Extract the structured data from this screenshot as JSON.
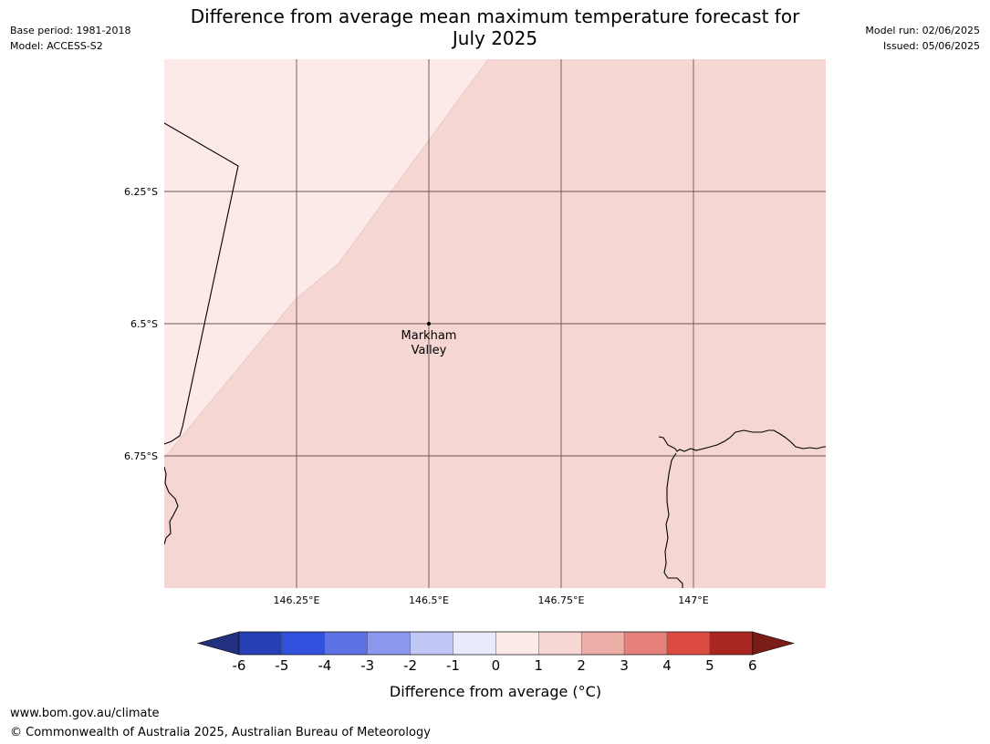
{
  "header": {
    "title_line1": "Difference from average mean maximum temperature forecast for",
    "title_line2": "July 2025",
    "base_period": "Base period: 1981-2018",
    "model": "Model: ACCESS-S2",
    "model_run": "Model run: 02/06/2025",
    "issued": "Issued: 05/06/2025"
  },
  "map": {
    "lat_labels": [
      "6.25°S",
      "6.5°S",
      "6.75°S"
    ],
    "lon_labels": [
      "146.25°E",
      "146.5°E",
      "146.75°E",
      "147°E"
    ],
    "place": {
      "name_line1": "Markham",
      "name_line2": "Valley"
    },
    "fill_colors": {
      "zero_to_one": "#fbeae8",
      "one_to_two": "#f5d6d3"
    }
  },
  "colorbar": {
    "ticks": [
      "-6",
      "-5",
      "-4",
      "-3",
      "-2",
      "-1",
      "0",
      "1",
      "2",
      "3",
      "4",
      "5",
      "6"
    ],
    "colors": [
      "#22307f",
      "#263fb5",
      "#3150de",
      "#5c71e4",
      "#8997ec",
      "#c0c7f4",
      "#e9ebfc",
      "#fbeae8",
      "#f5d6d3",
      "#edaea8",
      "#e5807a",
      "#dc4b40",
      "#aa2621",
      "#7a1c18"
    ],
    "label": "Difference from average (°C)"
  },
  "footer": {
    "url": "www.bom.gov.au/climate",
    "copyright": "© Commonwealth of Australia 2025, Australian Bureau of Meteorology"
  }
}
